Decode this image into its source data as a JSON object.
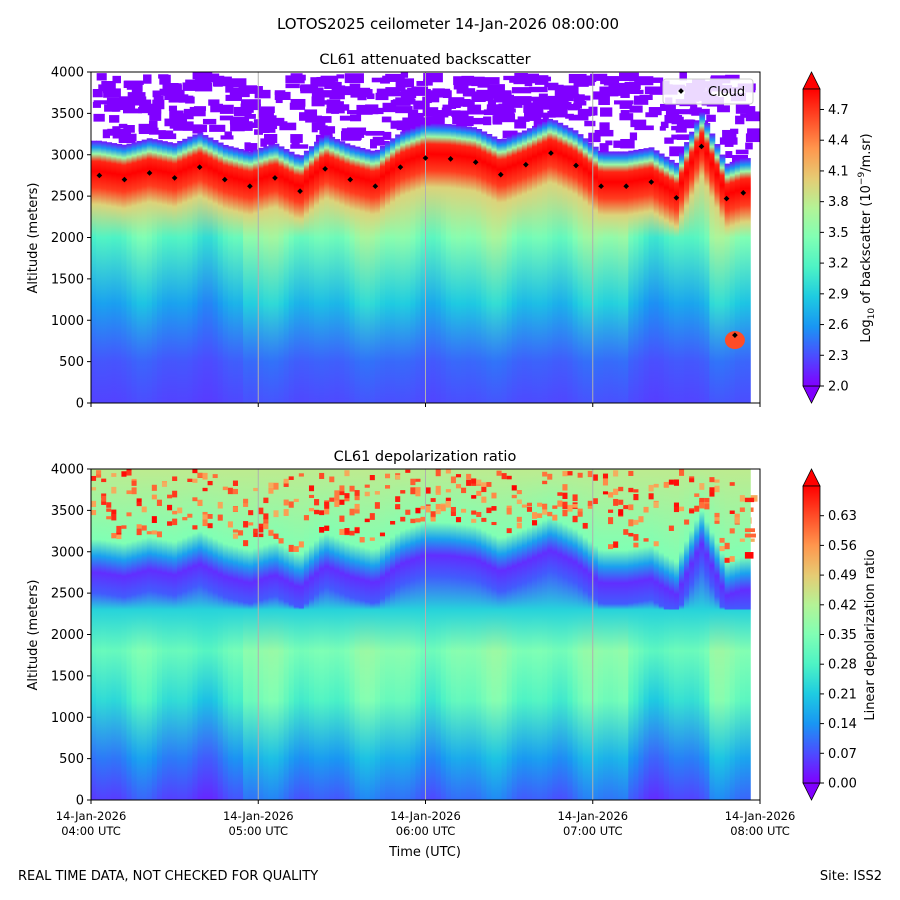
{
  "figure": {
    "title": "LOTOS2025 ceilometer 14-Jan-2026 08:00:00",
    "footer_left": "REAL TIME DATA, NOT CHECKED FOR QUALITY",
    "footer_right": "Site: ISS2"
  },
  "chart_data": [
    {
      "type": "heatmap",
      "title": "CL61 attenuated backscatter",
      "ylabel": "Altitude (meters)",
      "xlim_utc": [
        "04:00",
        "08:00"
      ],
      "ylim": [
        0,
        4000
      ],
      "yticks": [
        0,
        500,
        1000,
        1500,
        2000,
        2500,
        3000,
        3500,
        4000
      ],
      "colorbar": {
        "label": "Log10 of backscatter (10^-9/m.sr)",
        "label_parts": [
          "Log",
          "10",
          " of backscatter (10",
          "−9",
          "/m.sr)"
        ],
        "range": [
          2.0,
          4.9
        ],
        "ticks": [
          "2.0",
          "2.3",
          "2.6",
          "2.9",
          "3.2",
          "3.5",
          "3.8",
          "4.1",
          "4.4",
          "4.7"
        ],
        "colormap": "rainbow",
        "extend": "both"
      },
      "legend": {
        "entries": [
          "Cloud"
        ],
        "placement": "top-right"
      },
      "cloud_base": {
        "time_hours": [
          4.05,
          4.2,
          4.35,
          4.5,
          4.65,
          4.8,
          4.95,
          5.1,
          5.25,
          5.4,
          5.55,
          5.7,
          5.85,
          6.0,
          6.15,
          6.3,
          6.45,
          6.6,
          6.75,
          6.9,
          7.05,
          7.2,
          7.35,
          7.5,
          7.65,
          7.8,
          7.9
        ],
        "altitude_m": [
          2750,
          2700,
          2780,
          2720,
          2850,
          2700,
          2620,
          2720,
          2560,
          2830,
          2700,
          2620,
          2850,
          2960,
          2950,
          2910,
          2760,
          2880,
          3020,
          2870,
          2620,
          2620,
          2670,
          2480,
          3100,
          2470,
          2540
        ]
      }
    },
    {
      "type": "heatmap",
      "title": "CL61 depolarization ratio",
      "ylabel": "Altitude (meters)",
      "xlabel": "Time (UTC)",
      "xlim_utc": [
        "04:00",
        "08:00"
      ],
      "ylim": [
        0,
        4000
      ],
      "yticks": [
        0,
        500,
        1000,
        1500,
        2000,
        2500,
        3000,
        3500,
        4000
      ],
      "colorbar": {
        "label": "Linear depolarization ratio",
        "range": [
          0.0,
          0.7
        ],
        "ticks": [
          "0.00",
          "0.07",
          "0.14",
          "0.21",
          "0.28",
          "0.35",
          "0.42",
          "0.49",
          "0.56",
          "0.63"
        ],
        "colormap": "rainbow",
        "extend": "both"
      }
    }
  ],
  "xaxis": {
    "ticks": [
      {
        "hour": 4,
        "date": "14-Jan-2026",
        "time": "04:00 UTC"
      },
      {
        "hour": 5,
        "date": "14-Jan-2026",
        "time": "05:00 UTC"
      },
      {
        "hour": 6,
        "date": "14-Jan-2026",
        "time": "06:00 UTC"
      },
      {
        "hour": 7,
        "date": "14-Jan-2026",
        "time": "07:00 UTC"
      },
      {
        "hour": 8,
        "date": "14-Jan-2026",
        "time": "08:00 UTC"
      }
    ]
  },
  "colors": {
    "rainbow": [
      "#8000ff",
      "#4c4cff",
      "#1996f3",
      "#1ecbe1",
      "#4df3c5",
      "#80ffb4",
      "#b4f396",
      "#e6cb73",
      "#ff964d",
      "#ff4c27",
      "#ff0000"
    ],
    "axis": "#000000",
    "grid": "#b0b0b0"
  }
}
